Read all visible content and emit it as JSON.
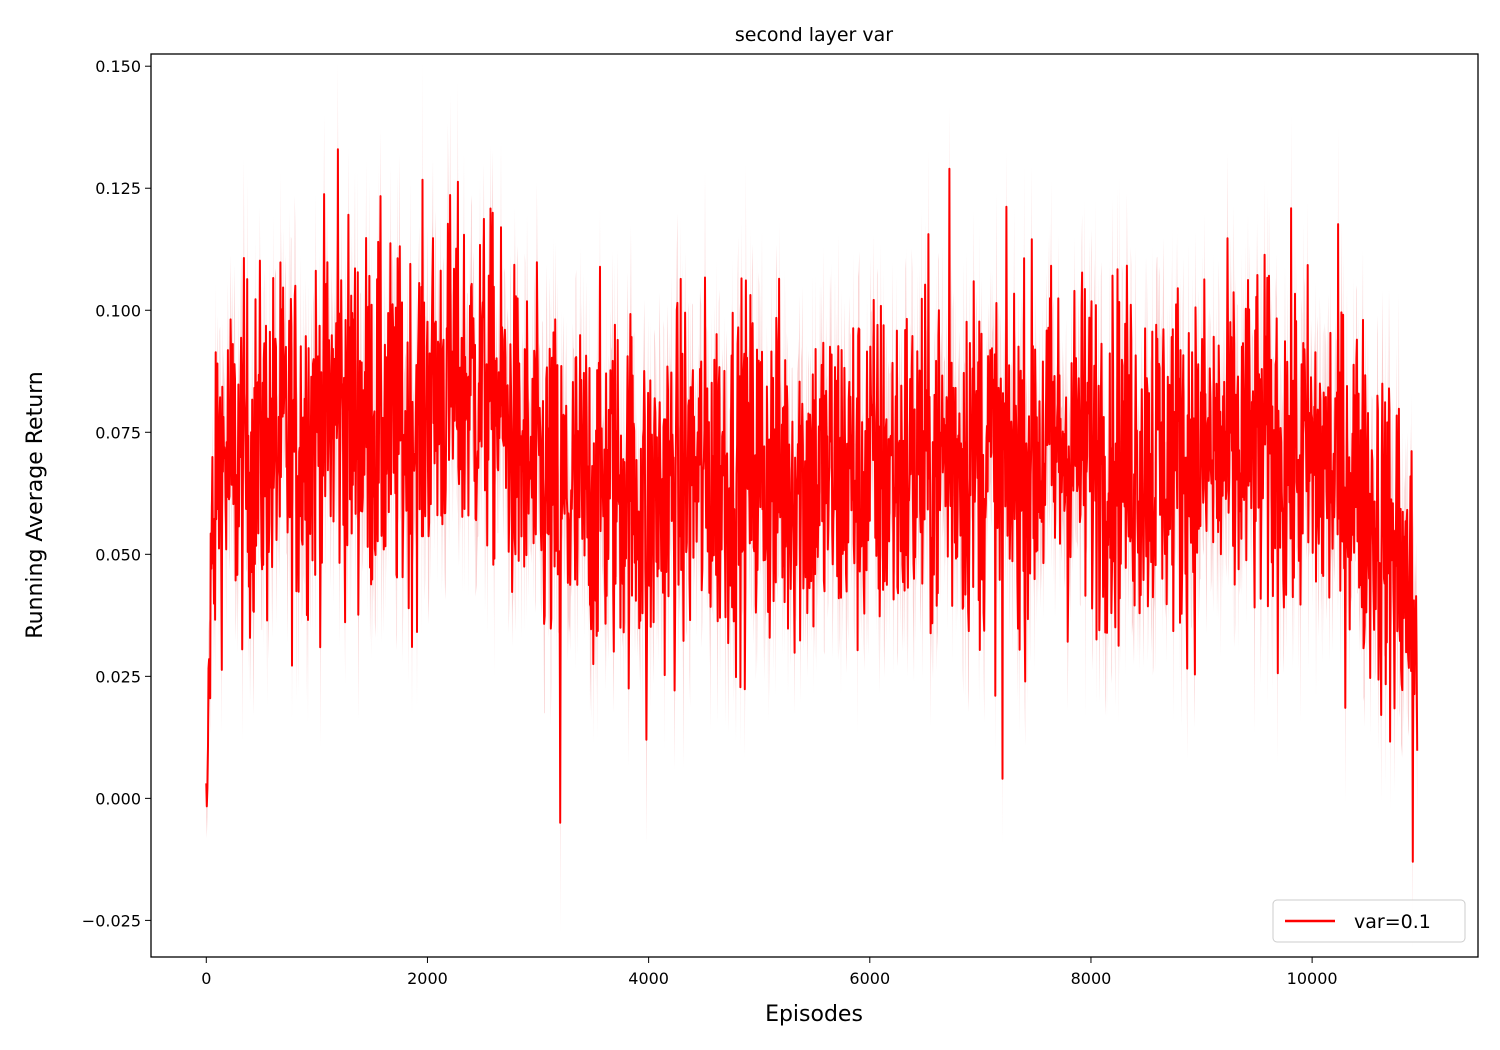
{
  "chart_data": {
    "type": "line",
    "title": "second layer var",
    "xlabel": "Episodes",
    "ylabel": "Running Average Return",
    "xlim": [
      -500,
      11500
    ],
    "ylim": [
      -0.0325,
      0.1525
    ],
    "xticks": [
      0,
      2000,
      4000,
      6000,
      8000,
      10000
    ],
    "xtick_labels": [
      "0",
      "2000",
      "4000",
      "6000",
      "8000",
      "10000"
    ],
    "yticks": [
      -0.025,
      0.0,
      0.025,
      0.05,
      0.075,
      0.1,
      0.125,
      0.15
    ],
    "ytick_labels": [
      "−0.025",
      "0.000",
      "0.025",
      "0.050",
      "0.075",
      "0.100",
      "0.125",
      "0.150"
    ],
    "grid": false,
    "legend_position": "bottom-right",
    "series": [
      {
        "name": "var=0.1",
        "color": "#ff0000",
        "band_color": "#f4a6a6",
        "x": [
          0,
          100,
          200,
          300,
          400,
          600,
          800,
          1000,
          1200,
          1400,
          1600,
          1800,
          2000,
          2200,
          2400,
          2600,
          2800,
          3000,
          3200,
          3400,
          3600,
          3800,
          4000,
          4200,
          4400,
          4600,
          4800,
          5000,
          5200,
          5400,
          5600,
          5800,
          6000,
          6200,
          6400,
          6600,
          6800,
          7000,
          7200,
          7400,
          7600,
          7800,
          8000,
          8200,
          8400,
          8600,
          8800,
          9000,
          9200,
          9400,
          9600,
          9800,
          10000,
          10200,
          10400,
          10600,
          10800,
          10950
        ],
        "mean": [
          0.0,
          0.07,
          0.068,
          0.069,
          0.07,
          0.072,
          0.073,
          0.078,
          0.08,
          0.078,
          0.077,
          0.074,
          0.082,
          0.085,
          0.085,
          0.083,
          0.072,
          0.065,
          0.06,
          0.062,
          0.064,
          0.065,
          0.06,
          0.064,
          0.066,
          0.067,
          0.068,
          0.067,
          0.066,
          0.066,
          0.066,
          0.066,
          0.067,
          0.067,
          0.068,
          0.069,
          0.072,
          0.07,
          0.068,
          0.07,
          0.072,
          0.072,
          0.072,
          0.071,
          0.071,
          0.07,
          0.07,
          0.07,
          0.07,
          0.071,
          0.072,
          0.07,
          0.069,
          0.067,
          0.066,
          0.055,
          0.048,
          0.035
        ],
        "spread": [
          0.01,
          0.02,
          0.024,
          0.024,
          0.024,
          0.024,
          0.024,
          0.024,
          0.025,
          0.025,
          0.025,
          0.024,
          0.024,
          0.024,
          0.024,
          0.023,
          0.023,
          0.024,
          0.025,
          0.024,
          0.024,
          0.024,
          0.024,
          0.024,
          0.024,
          0.024,
          0.024,
          0.024,
          0.024,
          0.024,
          0.024,
          0.024,
          0.024,
          0.024,
          0.024,
          0.024,
          0.025,
          0.024,
          0.024,
          0.024,
          0.024,
          0.024,
          0.024,
          0.024,
          0.024,
          0.024,
          0.024,
          0.024,
          0.024,
          0.024,
          0.024,
          0.024,
          0.024,
          0.024,
          0.023,
          0.024,
          0.025,
          0.022
        ],
        "notable_points": [
          {
            "x": 1190,
            "y": 0.133
          },
          {
            "x": 6720,
            "y": 0.129
          },
          {
            "x": 3200,
            "y": -0.005
          },
          {
            "x": 7200,
            "y": 0.004
          },
          {
            "x": 3980,
            "y": 0.012
          },
          {
            "x": 10910,
            "y": -0.013
          }
        ]
      }
    ]
  }
}
